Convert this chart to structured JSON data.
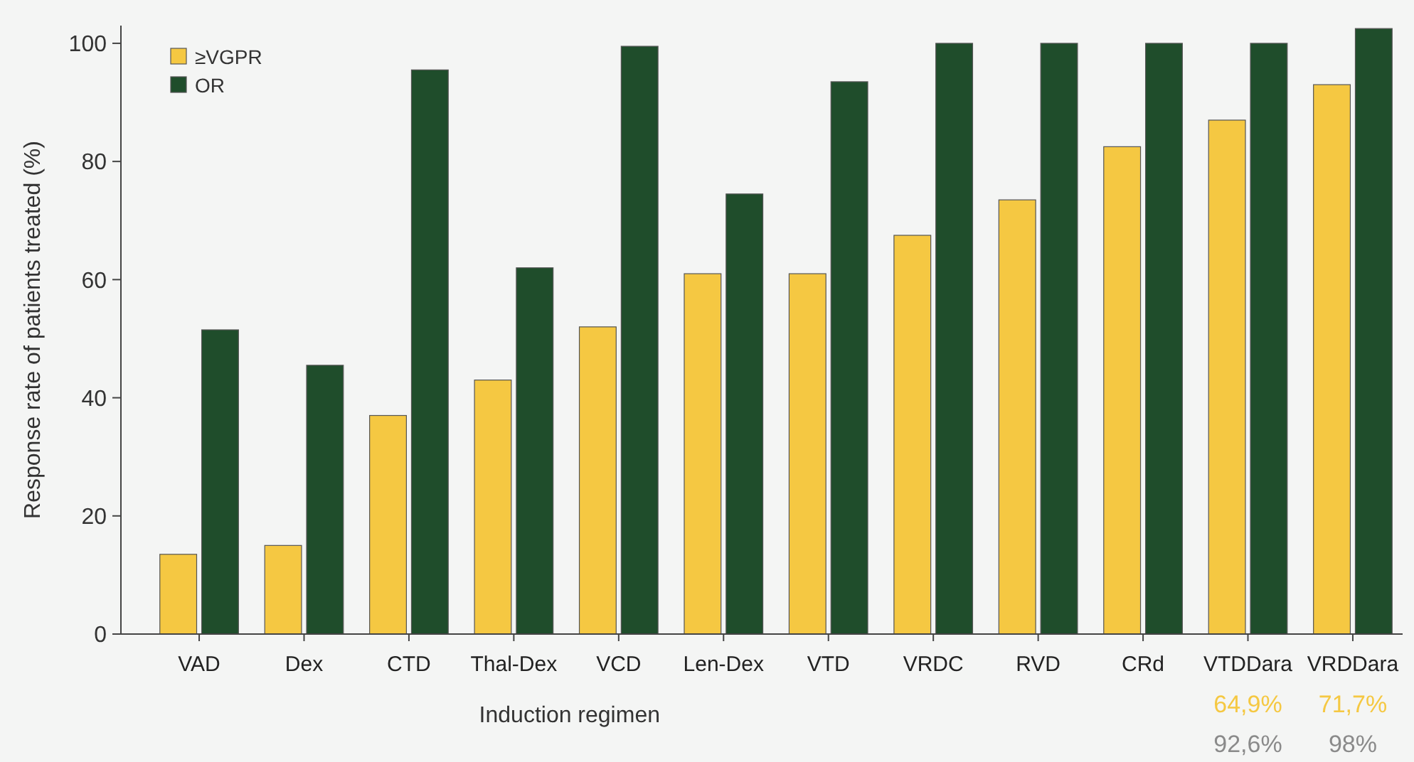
{
  "chart_data": {
    "type": "bar",
    "xlabel": "Induction regimen",
    "ylabel": "Response rate of patients treated (%)",
    "categories": [
      "VAD",
      "Dex",
      "CTD",
      "Thal-Dex",
      "VCD",
      "Len-Dex",
      "VTD",
      "VRDC",
      "RVD",
      "CRd",
      "VTDDara",
      "VRDDara"
    ],
    "series": [
      {
        "name": "≥VGPR",
        "color": "#f5c842",
        "values": [
          13.5,
          15,
          37,
          43,
          52,
          61,
          61,
          67.5,
          73.5,
          82.5,
          87,
          93
        ]
      },
      {
        "name": "OR",
        "color": "#1f4d2b",
        "values": [
          51.5,
          45.5,
          95.5,
          62,
          99.5,
          74.5,
          93.5,
          100,
          100,
          100,
          100,
          102.5
        ]
      }
    ],
    "ylim": [
      0,
      103
    ],
    "yticks": [
      0,
      20,
      40,
      60,
      80,
      100
    ],
    "legend": "top left",
    "grid": false,
    "annotations": [
      "64,9%",
      "92,6%",
      "71,7%",
      "98%"
    ]
  }
}
